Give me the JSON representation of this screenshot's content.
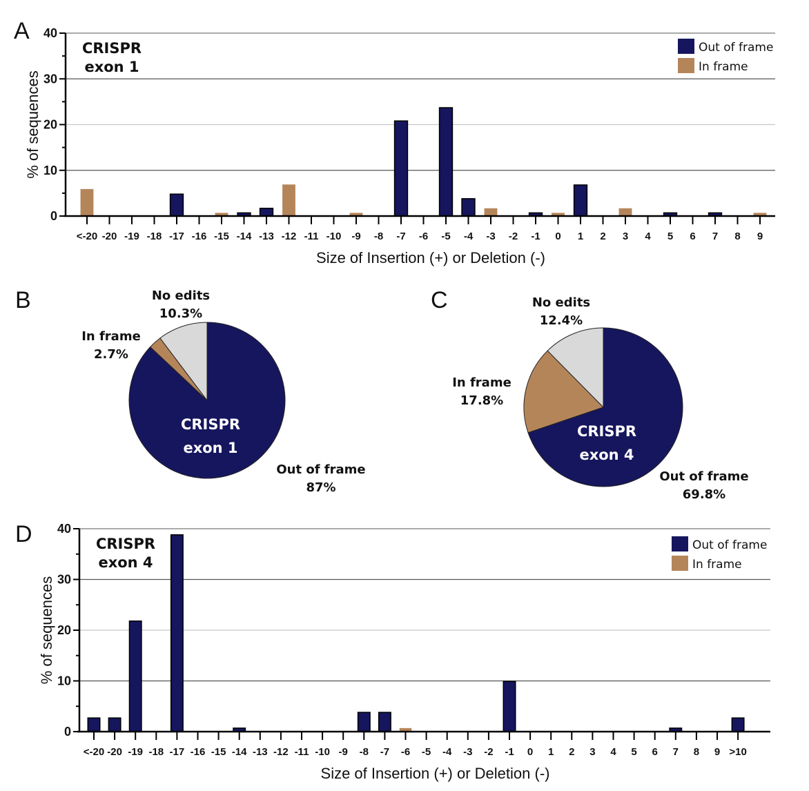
{
  "colors": {
    "out_of_frame": "#16165e",
    "in_frame": "#b5855a",
    "no_edits": "#d9d9d9"
  },
  "panels": {
    "a": "A",
    "b": "B",
    "c": "C",
    "d": "D"
  },
  "chart_data": [
    {
      "id": "A",
      "type": "bar",
      "title": "",
      "inset_label": [
        "CRISPR",
        "exon 1"
      ],
      "xlabel": "Size of Insertion (+) or Deletion (-)",
      "ylabel": "% of sequences",
      "ylim": [
        0,
        40
      ],
      "yticks": [
        0,
        10,
        20,
        30,
        40
      ],
      "grid": true,
      "legend": {
        "placement": "top-right",
        "entries": [
          "Out of frame",
          "In frame"
        ]
      },
      "categories": [
        "<-20",
        "-20",
        "-19",
        "-18",
        "-17",
        "-16",
        "-15",
        "-14",
        "-13",
        "-12",
        "-11",
        "-10",
        "-9",
        "-8",
        "-7",
        "-6",
        "-5",
        "-4",
        "-3",
        "-2",
        "-1",
        "0",
        "1",
        "2",
        "3",
        "4",
        "5",
        "6",
        "7",
        "8",
        "9"
      ],
      "series": [
        {
          "name": "Out of frame",
          "values": [
            0,
            0,
            0,
            0,
            4.8,
            0,
            0,
            0.7,
            1.7,
            0,
            0,
            0,
            0,
            0,
            20.8,
            0,
            23.7,
            3.8,
            0,
            0,
            0.7,
            0,
            6.8,
            0,
            0,
            0,
            0.7,
            0,
            0.7,
            0,
            0
          ]
        },
        {
          "name": "In frame",
          "values": [
            5.9,
            0,
            0,
            0,
            0,
            0,
            0.7,
            0,
            0,
            6.9,
            0,
            0,
            0.7,
            0,
            0,
            0,
            0,
            0,
            1.7,
            0,
            0,
            0.7,
            0,
            0,
            1.7,
            0,
            0,
            0,
            0,
            0,
            0.7
          ]
        }
      ]
    },
    {
      "id": "B",
      "type": "pie",
      "center_label": [
        "CRISPR",
        "exon 1"
      ],
      "slices": [
        {
          "name": "Out of frame",
          "value": 87,
          "label": [
            "Out of frame",
            "87%"
          ]
        },
        {
          "name": "In frame",
          "value": 2.7,
          "label": [
            "In frame",
            "2.7%"
          ]
        },
        {
          "name": "No edits",
          "value": 10.3,
          "label": [
            "No edits",
            "10.3%"
          ]
        }
      ]
    },
    {
      "id": "C",
      "type": "pie",
      "center_label": [
        "CRISPR",
        "exon 4"
      ],
      "slices": [
        {
          "name": "Out of frame",
          "value": 69.8,
          "label": [
            "Out of frame",
            "69.8%"
          ]
        },
        {
          "name": "In frame",
          "value": 17.8,
          "label": [
            "In frame",
            "17.8%"
          ]
        },
        {
          "name": "No edits",
          "value": 12.4,
          "label": [
            "No edits",
            "12.4%"
          ]
        }
      ]
    },
    {
      "id": "D",
      "type": "bar",
      "title": "",
      "inset_label": [
        "CRISPR",
        "exon 4"
      ],
      "xlabel": "Size of Insertion (+) or Deletion (-)",
      "ylabel": "% of sequences",
      "ylim": [
        0,
        40
      ],
      "yticks": [
        0,
        10,
        20,
        30,
        40
      ],
      "grid": true,
      "legend": {
        "placement": "top-right",
        "entries": [
          "Out of frame",
          "In frame"
        ]
      },
      "categories": [
        "<-20",
        "-20",
        "-19",
        "-18",
        "-17",
        "-16",
        "-15",
        "-14",
        "-13",
        "-12",
        "-11",
        "-10",
        "-9",
        "-8",
        "-7",
        "-6",
        "-5",
        "-4",
        "-3",
        "-2",
        "-1",
        "0",
        "1",
        "2",
        "3",
        "4",
        "5",
        "6",
        "7",
        "8",
        "9",
        ">10"
      ],
      "series": [
        {
          "name": "Out of frame",
          "values": [
            2.7,
            2.7,
            21.8,
            0,
            38.8,
            0,
            0,
            0.7,
            0,
            0,
            0,
            0,
            0,
            3.8,
            3.8,
            0,
            0,
            0,
            0,
            0,
            9.9,
            0,
            0,
            0,
            0,
            0,
            0,
            0,
            0.7,
            0,
            0,
            2.7
          ]
        },
        {
          "name": "In frame",
          "values": [
            0,
            0,
            0,
            0,
            0,
            0,
            0,
            0,
            0,
            0,
            0,
            0,
            0,
            0,
            0,
            0.7,
            0,
            0,
            0,
            0,
            0,
            0,
            0,
            0,
            0,
            0,
            0,
            0,
            0,
            0,
            0,
            0
          ]
        }
      ]
    }
  ]
}
